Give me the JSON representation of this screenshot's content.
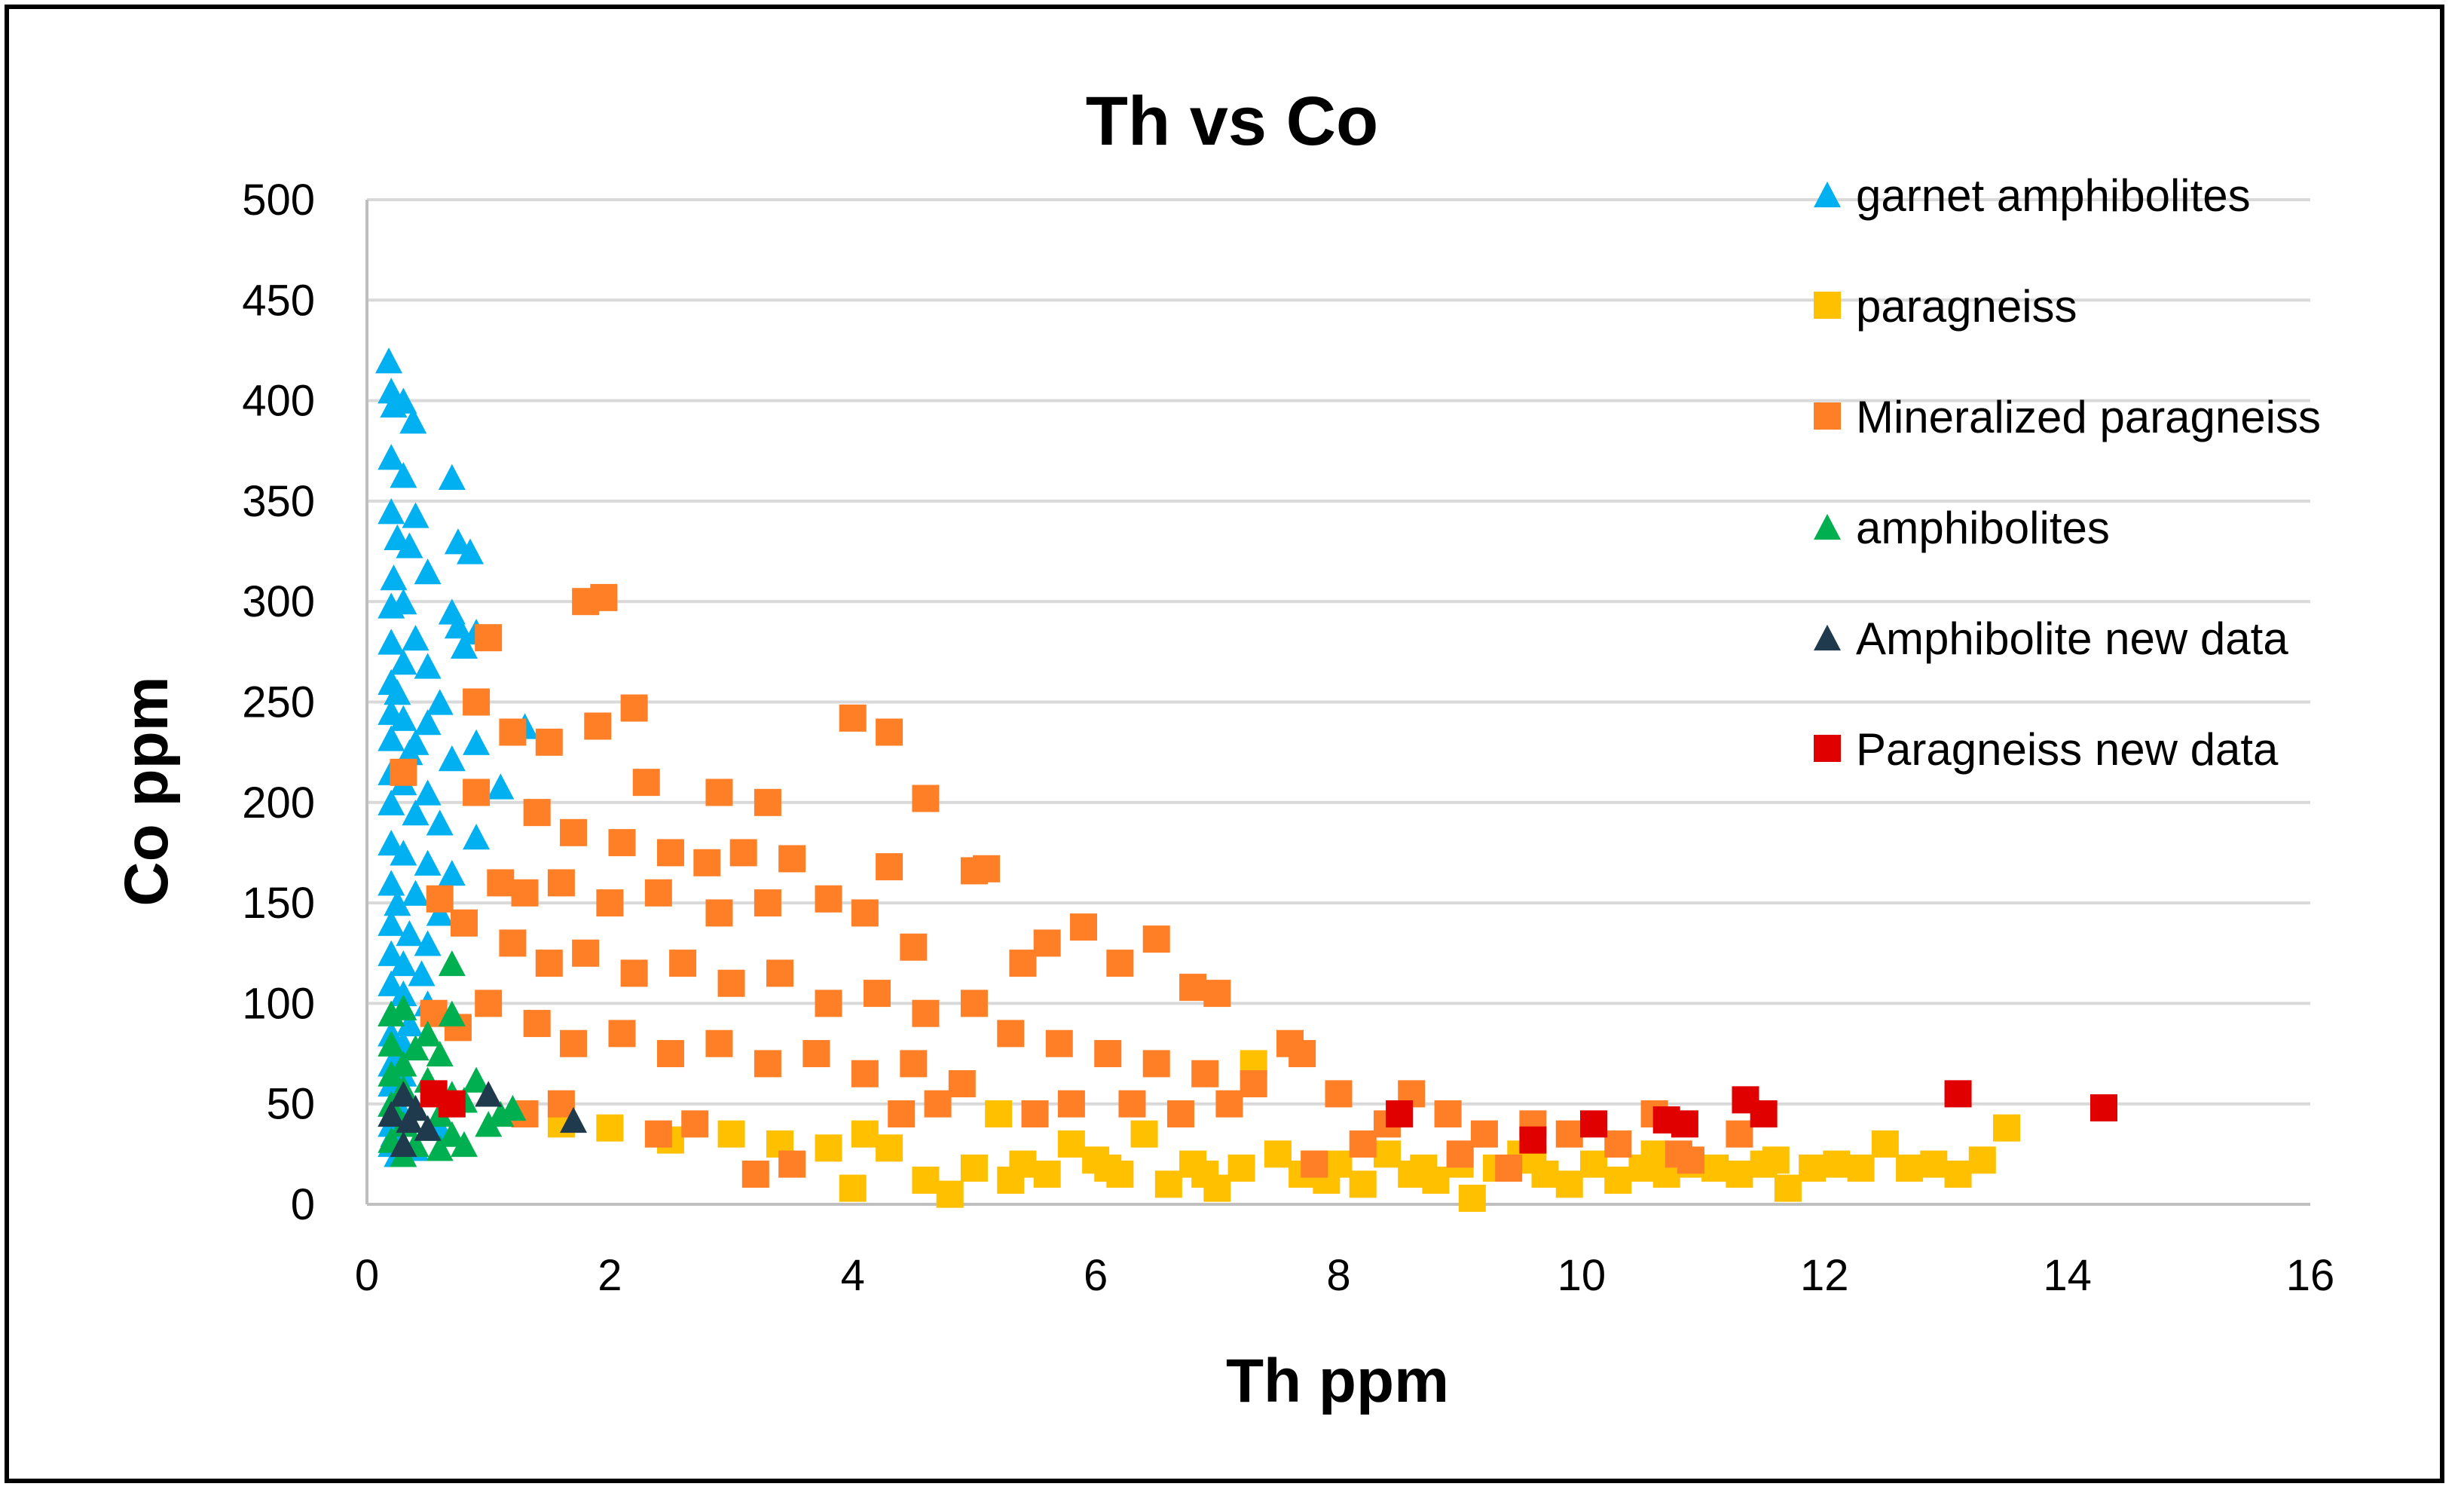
{
  "chart_data": {
    "type": "scatter",
    "title": "Th vs Co",
    "xlabel": "Th ppm",
    "ylabel": "Co ppm",
    "xlim": [
      0,
      16
    ],
    "ylim": [
      0,
      500
    ],
    "xticks": [
      "0",
      "2",
      "4",
      "6",
      "8",
      "10",
      "12",
      "14",
      "16"
    ],
    "yticks": [
      "0",
      "50",
      "100",
      "150",
      "200",
      "250",
      "300",
      "350",
      "400",
      "450",
      "500"
    ],
    "grid": true,
    "legend_position": "top-right",
    "series": [
      {
        "name": "garnet amphibolites",
        "marker": "triangle",
        "color": "#00b0f0",
        "points": [
          [
            0.18,
            420
          ],
          [
            0.2,
            405
          ],
          [
            0.22,
            398
          ],
          [
            0.3,
            400
          ],
          [
            0.38,
            390
          ],
          [
            0.2,
            372
          ],
          [
            0.3,
            363
          ],
          [
            0.7,
            362
          ],
          [
            0.2,
            345
          ],
          [
            0.4,
            343
          ],
          [
            0.25,
            332
          ],
          [
            0.35,
            328
          ],
          [
            0.75,
            330
          ],
          [
            0.85,
            325
          ],
          [
            0.22,
            312
          ],
          [
            0.5,
            315
          ],
          [
            0.3,
            300
          ],
          [
            0.2,
            298
          ],
          [
            0.7,
            295
          ],
          [
            0.75,
            288
          ],
          [
            0.9,
            285
          ],
          [
            0.2,
            280
          ],
          [
            0.4,
            282
          ],
          [
            0.8,
            278
          ],
          [
            0.3,
            270
          ],
          [
            0.5,
            268
          ],
          [
            0.2,
            260
          ],
          [
            0.25,
            255
          ],
          [
            0.6,
            250
          ],
          [
            0.2,
            245
          ],
          [
            0.3,
            242
          ],
          [
            0.5,
            240
          ],
          [
            1.3,
            238
          ],
          [
            0.2,
            232
          ],
          [
            0.4,
            230
          ],
          [
            0.35,
            225
          ],
          [
            0.7,
            222
          ],
          [
            0.9,
            230
          ],
          [
            0.2,
            215
          ],
          [
            0.3,
            210
          ],
          [
            0.5,
            205
          ],
          [
            1.1,
            208
          ],
          [
            0.2,
            200
          ],
          [
            0.4,
            195
          ],
          [
            0.6,
            190
          ],
          [
            0.9,
            183
          ],
          [
            0.2,
            180
          ],
          [
            0.3,
            175
          ],
          [
            0.5,
            170
          ],
          [
            0.7,
            165
          ],
          [
            0.2,
            160
          ],
          [
            0.4,
            155
          ],
          [
            0.25,
            150
          ],
          [
            0.6,
            145
          ],
          [
            0.2,
            140
          ],
          [
            0.35,
            135
          ],
          [
            0.5,
            130
          ],
          [
            0.2,
            125
          ],
          [
            0.3,
            120
          ],
          [
            0.45,
            115
          ],
          [
            0.2,
            110
          ],
          [
            0.3,
            105
          ],
          [
            0.5,
            100
          ],
          [
            0.2,
            95
          ],
          [
            0.35,
            90
          ],
          [
            0.2,
            85
          ],
          [
            0.3,
            80
          ],
          [
            0.25,
            75
          ],
          [
            0.2,
            70
          ],
          [
            0.3,
            65
          ],
          [
            0.2,
            60
          ],
          [
            0.25,
            55
          ],
          [
            0.2,
            50
          ],
          [
            0.3,
            45
          ],
          [
            0.2,
            40
          ],
          [
            0.22,
            35
          ],
          [
            0.2,
            30
          ],
          [
            0.25,
            25
          ],
          [
            0.4,
            28
          ],
          [
            0.6,
            38
          ]
        ]
      },
      {
        "name": "paragneiss",
        "marker": "square",
        "color": "#ffc000",
        "points": [
          [
            1.6,
            40
          ],
          [
            2.0,
            38
          ],
          [
            2.5,
            32
          ],
          [
            3.0,
            35
          ],
          [
            3.4,
            30
          ],
          [
            3.8,
            28
          ],
          [
            4.0,
            8
          ],
          [
            4.1,
            35
          ],
          [
            4.3,
            28
          ],
          [
            4.6,
            12
          ],
          [
            4.8,
            5
          ],
          [
            5.0,
            18
          ],
          [
            5.2,
            45
          ],
          [
            5.4,
            20
          ],
          [
            5.6,
            15
          ],
          [
            5.8,
            30
          ],
          [
            6.0,
            22
          ],
          [
            6.2,
            15
          ],
          [
            6.4,
            35
          ],
          [
            6.6,
            10
          ],
          [
            6.8,
            20
          ],
          [
            7.0,
            8
          ],
          [
            7.2,
            18
          ],
          [
            7.3,
            70
          ],
          [
            7.5,
            25
          ],
          [
            7.7,
            15
          ],
          [
            7.9,
            12
          ],
          [
            8.0,
            20
          ],
          [
            8.2,
            10
          ],
          [
            8.4,
            25
          ],
          [
            8.6,
            15
          ],
          [
            8.8,
            12
          ],
          [
            9.0,
            20
          ],
          [
            9.1,
            3
          ],
          [
            9.3,
            18
          ],
          [
            9.5,
            25
          ],
          [
            9.7,
            15
          ],
          [
            9.9,
            10
          ],
          [
            10.1,
            20
          ],
          [
            10.3,
            12
          ],
          [
            10.5,
            18
          ],
          [
            10.7,
            15
          ],
          [
            10.9,
            20
          ],
          [
            11.1,
            18
          ],
          [
            11.3,
            15
          ],
          [
            11.5,
            20
          ],
          [
            11.7,
            8
          ],
          [
            11.9,
            18
          ],
          [
            12.1,
            20
          ],
          [
            12.3,
            18
          ],
          [
            12.5,
            30
          ],
          [
            12.7,
            18
          ],
          [
            12.9,
            20
          ],
          [
            13.1,
            15
          ],
          [
            13.3,
            22
          ],
          [
            13.5,
            38
          ],
          [
            5.3,
            12
          ],
          [
            6.1,
            18
          ],
          [
            6.9,
            15
          ],
          [
            7.8,
            20
          ],
          [
            8.7,
            18
          ],
          [
            9.6,
            22
          ],
          [
            10.6,
            25
          ],
          [
            11.6,
            22
          ]
        ]
      },
      {
        "name": "Mineralized paragneiss",
        "marker": "square",
        "color": "#ff7f27",
        "points": [
          [
            1.8,
            300
          ],
          [
            1.95,
            302
          ],
          [
            1.0,
            282
          ],
          [
            0.9,
            250
          ],
          [
            2.2,
            247
          ],
          [
            4.0,
            242
          ],
          [
            4.3,
            235
          ],
          [
            0.3,
            215
          ],
          [
            1.2,
            235
          ],
          [
            1.5,
            230
          ],
          [
            1.9,
            238
          ],
          [
            2.3,
            210
          ],
          [
            2.9,
            205
          ],
          [
            3.3,
            200
          ],
          [
            4.6,
            202
          ],
          [
            0.9,
            205
          ],
          [
            1.4,
            195
          ],
          [
            1.7,
            185
          ],
          [
            2.1,
            180
          ],
          [
            2.5,
            175
          ],
          [
            2.8,
            170
          ],
          [
            3.1,
            175
          ],
          [
            3.5,
            172
          ],
          [
            4.3,
            168
          ],
          [
            5.0,
            166
          ],
          [
            5.1,
            167
          ],
          [
            1.1,
            160
          ],
          [
            1.3,
            155
          ],
          [
            1.6,
            160
          ],
          [
            2.0,
            150
          ],
          [
            2.4,
            155
          ],
          [
            2.9,
            145
          ],
          [
            3.3,
            150
          ],
          [
            3.8,
            152
          ],
          [
            4.1,
            145
          ],
          [
            4.5,
            128
          ],
          [
            0.6,
            152
          ],
          [
            0.8,
            140
          ],
          [
            1.2,
            130
          ],
          [
            1.5,
            120
          ],
          [
            1.8,
            125
          ],
          [
            2.2,
            115
          ],
          [
            2.6,
            120
          ],
          [
            3.0,
            110
          ],
          [
            3.4,
            115
          ],
          [
            3.8,
            100
          ],
          [
            4.2,
            105
          ],
          [
            4.6,
            95
          ],
          [
            5.0,
            100
          ],
          [
            5.4,
            120
          ],
          [
            5.6,
            130
          ],
          [
            5.9,
            138
          ],
          [
            6.2,
            120
          ],
          [
            6.5,
            132
          ],
          [
            6.8,
            108
          ],
          [
            7.0,
            105
          ],
          [
            1.0,
            100
          ],
          [
            1.4,
            90
          ],
          [
            1.7,
            80
          ],
          [
            2.1,
            85
          ],
          [
            2.5,
            75
          ],
          [
            2.9,
            80
          ],
          [
            3.3,
            70
          ],
          [
            3.7,
            75
          ],
          [
            4.1,
            65
          ],
          [
            4.5,
            70
          ],
          [
            4.9,
            60
          ],
          [
            5.3,
            85
          ],
          [
            5.7,
            80
          ],
          [
            6.1,
            75
          ],
          [
            6.5,
            70
          ],
          [
            6.9,
            65
          ],
          [
            7.3,
            60
          ],
          [
            7.7,
            75
          ],
          [
            7.6,
            80
          ],
          [
            8.0,
            55
          ],
          [
            8.4,
            40
          ],
          [
            8.6,
            55
          ],
          [
            8.9,
            45
          ],
          [
            9.2,
            35
          ],
          [
            9.6,
            40
          ],
          [
            9.9,
            35
          ],
          [
            10.3,
            30
          ],
          [
            10.8,
            25
          ],
          [
            11.3,
            35
          ],
          [
            10.9,
            22
          ],
          [
            8.2,
            30
          ],
          [
            7.8,
            20
          ],
          [
            3.2,
            15
          ],
          [
            3.5,
            20
          ],
          [
            2.4,
            35
          ],
          [
            2.7,
            40
          ],
          [
            1.3,
            45
          ],
          [
            1.6,
            50
          ],
          [
            0.75,
            88
          ],
          [
            0.55,
            95
          ],
          [
            6.3,
            50
          ],
          [
            6.7,
            45
          ],
          [
            7.1,
            50
          ],
          [
            5.5,
            45
          ],
          [
            5.8,
            50
          ],
          [
            4.7,
            50
          ],
          [
            4.4,
            45
          ],
          [
            9.4,
            18
          ],
          [
            9.0,
            25
          ],
          [
            10.6,
            45
          ]
        ]
      },
      {
        "name": "amphibolites",
        "marker": "triangle",
        "color": "#00b050",
        "points": [
          [
            0.7,
            120
          ],
          [
            0.3,
            98
          ],
          [
            0.2,
            95
          ],
          [
            0.7,
            95
          ],
          [
            0.5,
            85
          ],
          [
            0.2,
            80
          ],
          [
            0.4,
            78
          ],
          [
            0.6,
            75
          ],
          [
            0.3,
            70
          ],
          [
            0.2,
            65
          ],
          [
            0.5,
            62
          ],
          [
            0.9,
            62
          ],
          [
            0.3,
            58
          ],
          [
            0.7,
            55
          ],
          [
            0.2,
            50
          ],
          [
            0.4,
            48
          ],
          [
            0.6,
            45
          ],
          [
            0.8,
            52
          ],
          [
            1.1,
            45
          ],
          [
            0.3,
            40
          ],
          [
            0.5,
            38
          ],
          [
            0.7,
            35
          ],
          [
            0.2,
            32
          ],
          [
            0.4,
            30
          ],
          [
            0.6,
            28
          ],
          [
            0.8,
            30
          ],
          [
            0.3,
            25
          ],
          [
            1.2,
            48
          ],
          [
            1.0,
            40
          ]
        ]
      },
      {
        "name": "Amphibolite new data",
        "marker": "triangle",
        "color": "#1f3a4d",
        "points": [
          [
            0.3,
            55
          ],
          [
            0.4,
            48
          ],
          [
            0.35,
            42
          ],
          [
            0.5,
            38
          ],
          [
            0.3,
            30
          ],
          [
            0.2,
            45
          ],
          [
            1.0,
            55
          ],
          [
            1.7,
            42
          ]
        ]
      },
      {
        "name": "Paragneiss new data",
        "marker": "square",
        "color": "#e00000",
        "points": [
          [
            0.55,
            55
          ],
          [
            0.7,
            50
          ],
          [
            8.5,
            45
          ],
          [
            9.6,
            32
          ],
          [
            10.1,
            40
          ],
          [
            10.7,
            42
          ],
          [
            10.85,
            40
          ],
          [
            11.35,
            52
          ],
          [
            11.5,
            45
          ],
          [
            13.1,
            55
          ],
          [
            14.3,
            48
          ]
        ]
      }
    ]
  }
}
